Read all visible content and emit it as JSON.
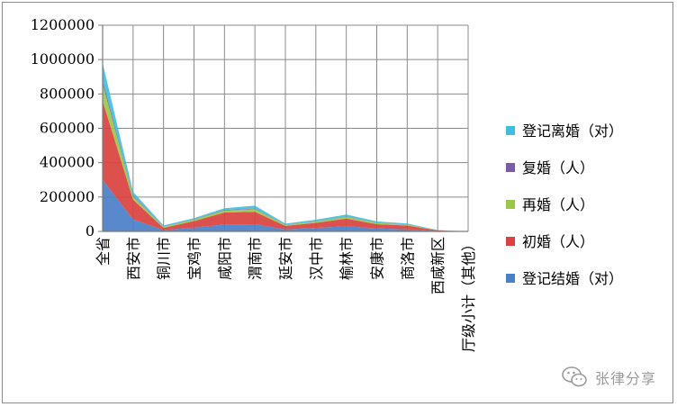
{
  "chart_data": {
    "type": "area",
    "stacked": true,
    "categories": [
      "全省",
      "西安市",
      "铜川市",
      "宝鸡市",
      "咸阳市",
      "渭南市",
      "延安市",
      "汉中市",
      "榆林市",
      "安康市",
      "商洛市",
      "西咸新区",
      "厅级小计（其他）"
    ],
    "series": [
      {
        "name": "登记结婚（对）",
        "color": "#4a7fc9",
        "values": [
          300000,
          70000,
          8000,
          22000,
          40000,
          42000,
          12000,
          20000,
          30000,
          18000,
          12000,
          2000,
          0
        ]
      },
      {
        "name": "初婚（人）",
        "color": "#d9423e",
        "values": [
          460000,
          115000,
          12000,
          38000,
          70000,
          72000,
          20000,
          30000,
          45000,
          24000,
          22000,
          4000,
          0
        ]
      },
      {
        "name": "再婚（人）",
        "color": "#9bc748",
        "values": [
          100000,
          20000,
          6000,
          9000,
          12000,
          16000,
          6000,
          7000,
          10000,
          7000,
          5000,
          800,
          0
        ]
      },
      {
        "name": "复婚（人）",
        "color": "#7b5ba6",
        "values": [
          20000,
          5000,
          1000,
          2000,
          3000,
          3000,
          1000,
          1500,
          2000,
          1500,
          1000,
          200,
          0
        ]
      },
      {
        "name": "登记离婚（对）",
        "color": "#3fbfdd",
        "values": [
          100000,
          20000,
          8000,
          6000,
          10000,
          17000,
          6000,
          9500,
          11000,
          7500,
          6000,
          800,
          0
        ]
      }
    ],
    "yticks": [
      "0",
      "200000",
      "400000",
      "600000",
      "800000",
      "1000000",
      "1200000"
    ],
    "ylim": [
      0,
      1200000
    ],
    "grid": true,
    "legend": "right",
    "title": "",
    "xlabel": "",
    "ylabel": ""
  },
  "watermark": {
    "text": "张律分享",
    "icon": "wechat-bubble-icon"
  }
}
